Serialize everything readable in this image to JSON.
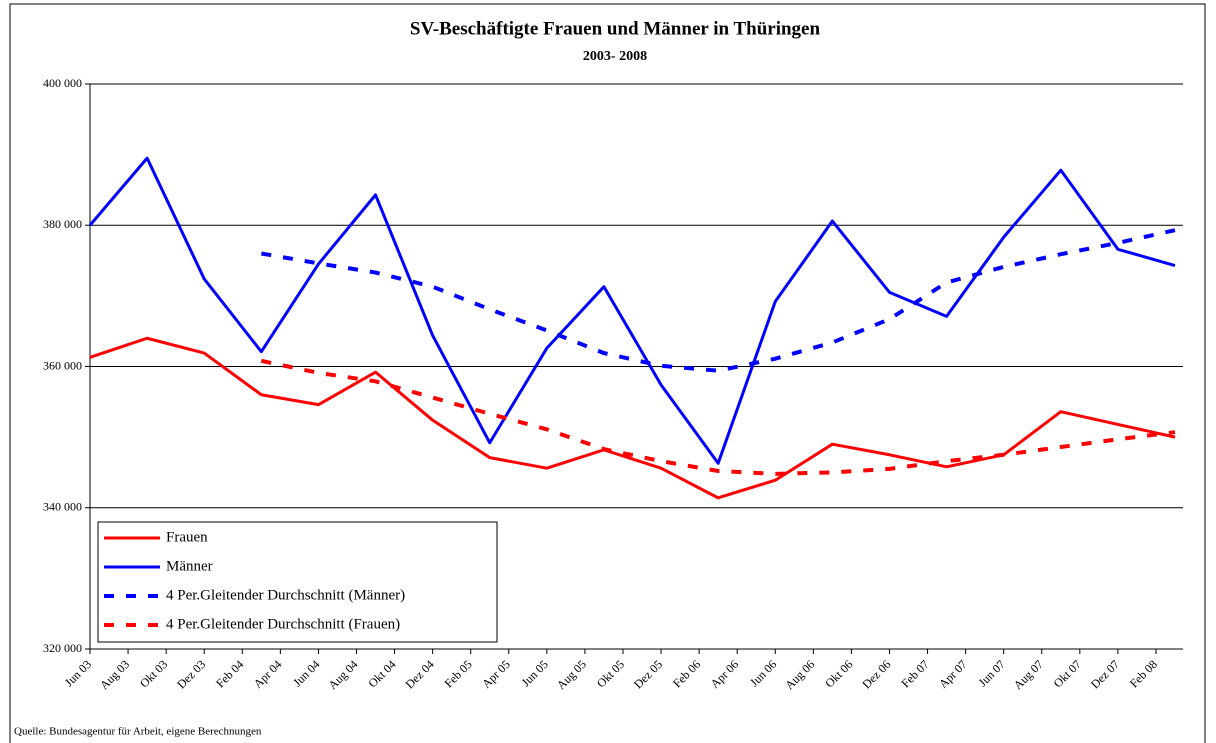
{
  "chart_data": {
    "type": "line",
    "title": "SV-Beschäftigte Frauen und Männer in Thüringen",
    "subtitle": "2003- 2008",
    "source": "Quelle: Bundesagentur für Arbeit, eigene Berechnungen",
    "categories": [
      "Jun 03",
      null,
      "Aug 03",
      null,
      "Okt 03",
      null,
      "Dez 03",
      null,
      "Feb 04",
      null,
      "Apr 04",
      null,
      "Jun 04",
      null,
      "Aug 04",
      null,
      "Okt 04",
      null,
      "Dez 04",
      null,
      "Feb 05",
      null,
      "Apr 05",
      null,
      "Jun 05",
      null,
      "Aug 05",
      null,
      "Okt 05",
      null,
      "Dez 05",
      null,
      "Feb 06",
      null,
      "Apr 06",
      null,
      "Jun 06",
      null,
      "Aug 06",
      null,
      "Okt 06",
      null,
      "Dez 06",
      null,
      "Feb 07",
      null,
      "Apr 07",
      null,
      "Jun 07",
      null,
      "Aug 07",
      null,
      "Okt 07",
      null,
      "Dez 07",
      null,
      "Feb 08",
      null
    ],
    "ylim": [
      320000,
      400000
    ],
    "yticks": [
      {
        "value": 320000,
        "label": "320 000"
      },
      {
        "value": 340000,
        "label": "340 000"
      },
      {
        "value": 360000,
        "label": "360 000"
      },
      {
        "value": 380000,
        "label": "380 000"
      },
      {
        "value": 400000,
        "label": "400 000"
      }
    ],
    "grid": true,
    "legend": "bottom-left",
    "series": [
      {
        "name": "Frauen",
        "color": "#ff0000",
        "dashed": false,
        "values": [
          361300,
          null,
          null,
          364000,
          null,
          null,
          361900,
          null,
          null,
          356000,
          null,
          null,
          354600,
          null,
          null,
          359200,
          null,
          null,
          352400,
          null,
          null,
          347100,
          null,
          null,
          345600,
          null,
          null,
          348200,
          null,
          null,
          345600,
          null,
          null,
          341400,
          null,
          null,
          343900,
          null,
          null,
          349000,
          null,
          null,
          347500,
          null,
          null,
          345800,
          null,
          null,
          347500,
          null,
          null,
          353600,
          null,
          null,
          351800,
          null,
          null,
          350000
        ]
      },
      {
        "name": "Männer",
        "color": "#0000ff",
        "dashed": false,
        "values": [
          380000,
          null,
          null,
          389500,
          null,
          null,
          372400,
          null,
          null,
          362100,
          null,
          null,
          374500,
          null,
          null,
          384300,
          null,
          null,
          364400,
          null,
          null,
          349200,
          null,
          null,
          362600,
          null,
          null,
          371300,
          null,
          null,
          357400,
          null,
          null,
          346300,
          null,
          null,
          369200,
          null,
          null,
          380600,
          null,
          null,
          370500,
          null,
          null,
          367100,
          null,
          null,
          378300,
          null,
          null,
          387800,
          null,
          null,
          376600,
          null,
          null,
          374300
        ]
      },
      {
        "name": "4 Per.Gleitender Durchschnitt (Männer)",
        "color": "#0000ff",
        "dashed": true,
        "values": [
          null,
          null,
          null,
          null,
          null,
          null,
          null,
          null,
          null,
          376000,
          null,
          null,
          374600,
          null,
          null,
          373300,
          null,
          null,
          371300,
          null,
          null,
          368100,
          null,
          null,
          365100,
          null,
          null,
          361900,
          null,
          null,
          360100,
          null,
          null,
          359400,
          null,
          null,
          361100,
          null,
          null,
          363400,
          null,
          null,
          366700,
          null,
          null,
          371900,
          null,
          null,
          374100,
          null,
          null,
          375900,
          null,
          null,
          377500,
          null,
          null,
          379300
        ]
      },
      {
        "name": "4 Per.Gleitender Durchschnitt (Frauen)",
        "color": "#ff0000",
        "dashed": true,
        "values": [
          null,
          null,
          null,
          null,
          null,
          null,
          null,
          null,
          null,
          360800,
          null,
          null,
          359100,
          null,
          null,
          357900,
          null,
          null,
          355600,
          null,
          null,
          353300,
          null,
          null,
          351100,
          null,
          null,
          348300,
          null,
          null,
          346600,
          null,
          null,
          345200,
          null,
          null,
          344800,
          null,
          null,
          345000,
          null,
          null,
          345500,
          null,
          null,
          346600,
          null,
          null,
          347500,
          null,
          null,
          348600,
          null,
          null,
          349700,
          null,
          null,
          350700
        ]
      }
    ]
  }
}
